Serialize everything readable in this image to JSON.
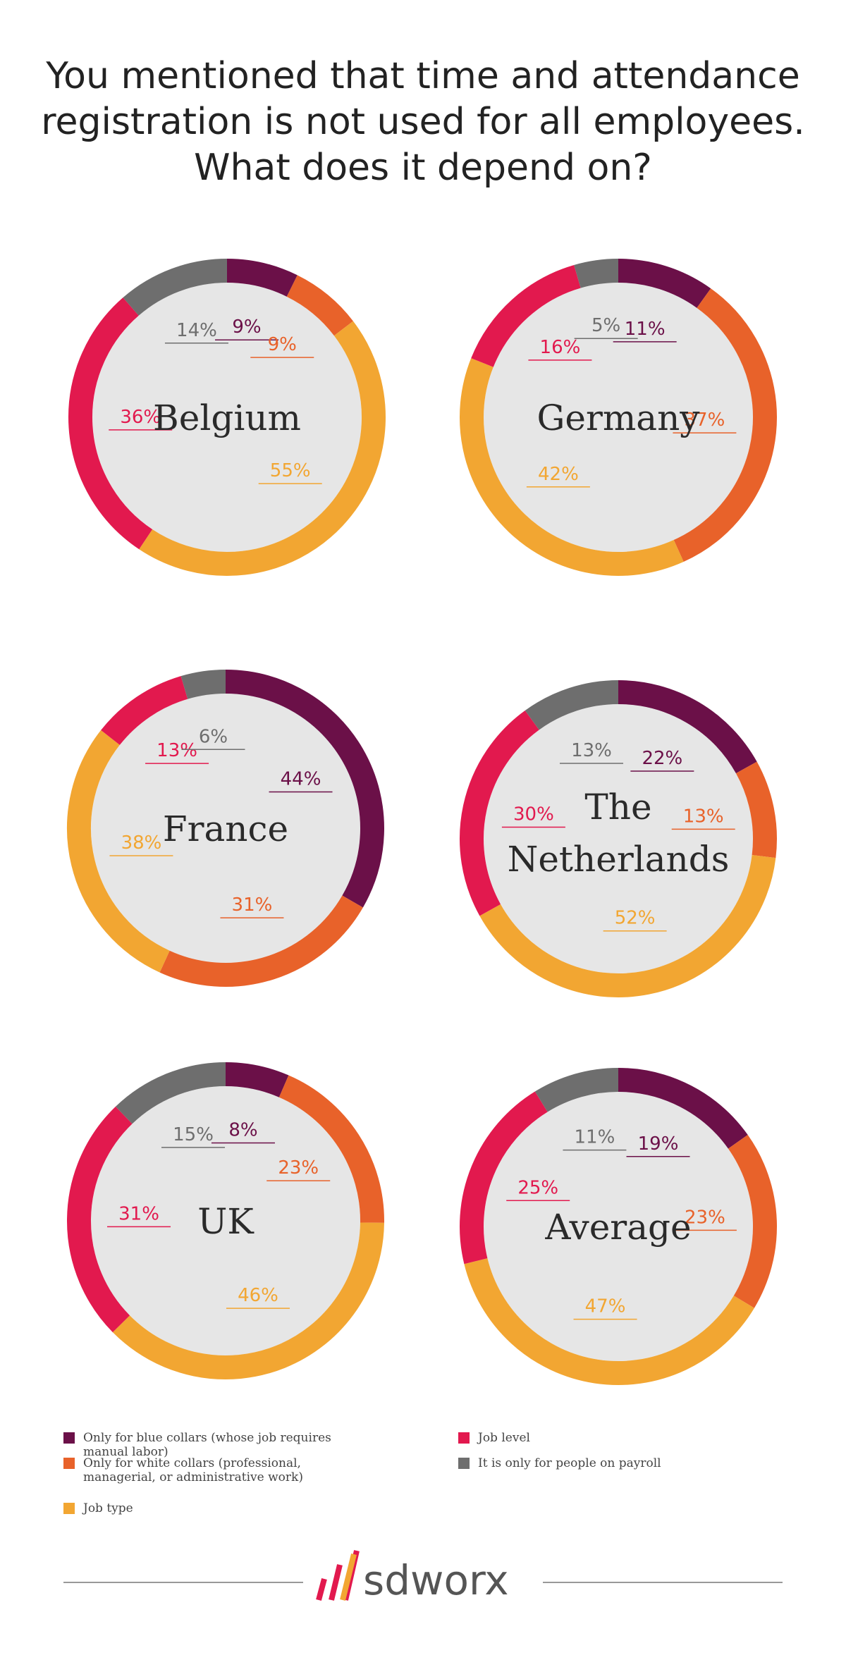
{
  "title_lines": [
    "You mentioned that time and attendance",
    "registration is not used for all employees.",
    "What does it depend on?"
  ],
  "legend": [
    {
      "name": "Only for blue collars (whose job requires manual labor)",
      "color": "#6b1048"
    },
    {
      "name": "Only for white collars (professional, managerial, or administrative work)",
      "color": "#e8622a"
    },
    {
      "name": "Job type",
      "color": "#f2a632"
    },
    {
      "name": "Job level",
      "color": "#e2194e"
    },
    {
      "name": "It is only for people on payroll",
      "color": "#6e6e6e"
    }
  ],
  "chart_data": [
    {
      "type": "donut",
      "title": "Belgium",
      "values": [
        9,
        9,
        55,
        36,
        14
      ],
      "value_labels": [
        "9%",
        "9%",
        "55%",
        "36%",
        "14%"
      ]
    },
    {
      "type": "donut",
      "title": "Germany",
      "values": [
        11,
        37,
        42,
        16,
        5
      ],
      "value_labels": [
        "11%",
        "37%",
        "42%",
        "16%",
        "5%"
      ]
    },
    {
      "type": "donut",
      "title": "France",
      "values": [
        44,
        31,
        38,
        13,
        6
      ],
      "value_labels": [
        "44%",
        "31%",
        "38%",
        "13%",
        "6%"
      ]
    },
    {
      "type": "donut",
      "title": "The Netherlands",
      "values": [
        22,
        13,
        52,
        30,
        13
      ],
      "value_labels": [
        "22%",
        "13%",
        "52%",
        "30%",
        "13%"
      ]
    },
    {
      "type": "donut",
      "title": "UK",
      "values": [
        8,
        23,
        46,
        31,
        15
      ],
      "value_labels": [
        "8%",
        "23%",
        "46%",
        "31%",
        "15%"
      ]
    },
    {
      "type": "donut",
      "title": "Average",
      "values": [
        19,
        23,
        47,
        25,
        11
      ],
      "value_labels": [
        "19%",
        "23%",
        "47%",
        "25%",
        "11%"
      ]
    }
  ],
  "brand": "sdworx"
}
